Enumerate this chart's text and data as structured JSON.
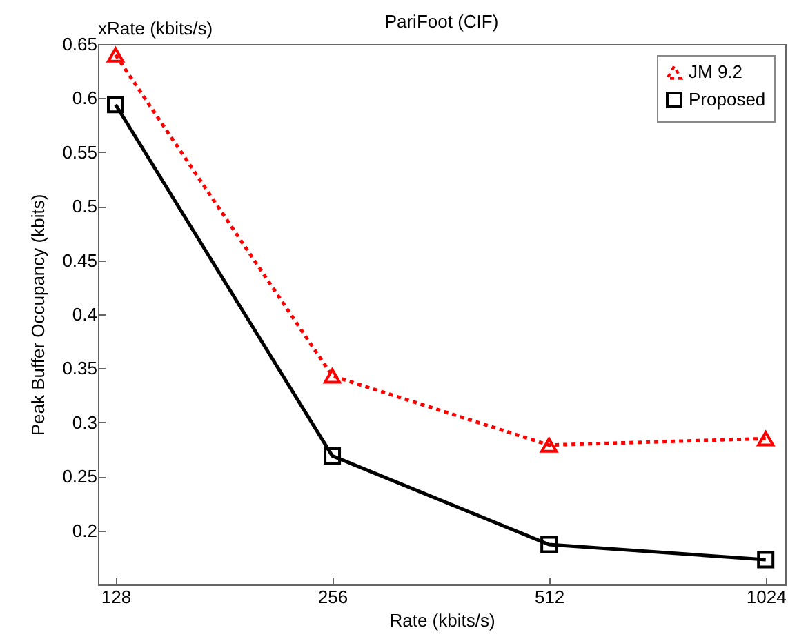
{
  "chart_data": {
    "type": "line",
    "title": "PariFoot (CIF)",
    "xlabel": "Rate (kbits/s)",
    "ylabel": "Peak Buffer Occupancy (kbits)",
    "annotations": [
      "xRate (kbits/s)"
    ],
    "x": [
      128,
      256,
      512,
      1024
    ],
    "series": [
      {
        "name": "JM 9.2",
        "color": "#ff0000",
        "values": [
          0.64,
          0.343,
          0.279,
          0.285
        ],
        "marker": "triangle",
        "line_style": "dotted"
      },
      {
        "name": "Proposed",
        "color": "#000000",
        "values": [
          0.594,
          0.269,
          0.187,
          0.173
        ],
        "marker": "square",
        "line_style": "solid"
      }
    ],
    "log": "x",
    "xlim": [
      121,
      1090
    ],
    "xticks": [
      128,
      256,
      512,
      1024
    ],
    "ylim": [
      0.15,
      0.65
    ],
    "yticks": [
      0.2,
      0.25,
      0.3,
      0.35,
      0.4,
      0.45,
      0.5,
      0.55,
      0.6,
      0.65
    ],
    "grid": false,
    "legend": "top right"
  }
}
